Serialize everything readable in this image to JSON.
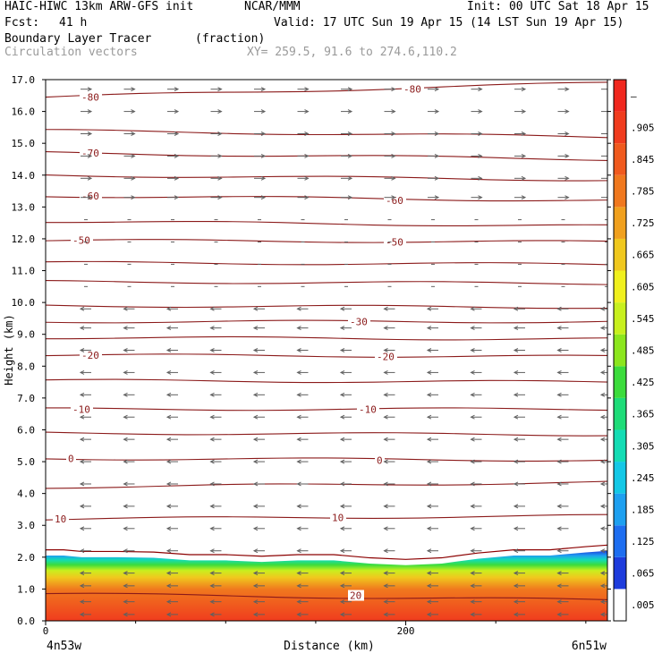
{
  "header": {
    "model": "HAIC-HIWC 13km ARW-GFS init",
    "org": "NCAR/MMM",
    "init": "Init: 00 UTC Sat 18 Apr 15",
    "fcst_label": "Fcst:",
    "fcst_value": "41 h",
    "valid": "Valid: 17 UTC Sun 19 Apr 15 (14 LST Sun 19 Apr 15)",
    "field": "Boundary Layer Tracer",
    "field_units": "(fraction)",
    "vectors": "Circulation vectors",
    "xy": "XY= 259.5, 91.6 to 274.6,110.2"
  },
  "chart_data": {
    "type": "heatmap",
    "title": "Boundary Layer Tracer",
    "xlabel": "Distance (km)",
    "ylabel": "Height (km)",
    "xlim": [
      0,
      312
    ],
    "ylim": [
      0,
      17
    ],
    "x_ticks": [
      {
        "v": 0,
        "label": "0"
      },
      {
        "v": 200,
        "label": "200"
      }
    ],
    "x_end_labels": {
      "left": "4n53w",
      "right": "6n51w"
    },
    "y_ticks": [
      "0.0",
      "1.0",
      "2.0",
      "3.0",
      "4.0",
      "5.0",
      "6.0",
      "7.0",
      "8.0",
      "9.0",
      "10.0",
      "11.0",
      "12.0",
      "13.0",
      "14.0",
      "15.0",
      "16.0",
      "17.0"
    ],
    "colorbar": {
      "labels": [
        ".005",
        ".065",
        ".125",
        ".185",
        ".245",
        ".305",
        ".365",
        ".425",
        ".485",
        ".545",
        ".605",
        ".665",
        ".725",
        ".785",
        ".845",
        ".905",
        "–"
      ],
      "colors": [
        "#ffffff",
        "#1e3cdc",
        "#1e6ef0",
        "#1ea0f0",
        "#14c8e6",
        "#14dcb4",
        "#1edc78",
        "#3cdc3c",
        "#8ce61e",
        "#c8f01e",
        "#f0f01e",
        "#f0c81e",
        "#f0a01e",
        "#f0781e",
        "#f05a1e",
        "#f03c1e",
        "#f0281e"
      ]
    },
    "tracer_profile": {
      "x": [
        0,
        10,
        20,
        40,
        60,
        80,
        100,
        120,
        140,
        160,
        180,
        200,
        220,
        240,
        260,
        280,
        300,
        312
      ],
      "top": [
        2.05,
        2.05,
        2.0,
        2.0,
        1.98,
        1.9,
        1.9,
        1.85,
        1.9,
        1.9,
        1.8,
        1.75,
        1.8,
        1.95,
        2.05,
        2.05,
        2.15,
        2.2
      ]
    },
    "isotherms": [
      {
        "label": "-80",
        "y0": 16.45,
        "y1": 16.9,
        "lx": [
          40,
          400
        ],
        "ly": [
          16.45,
          16.7
        ]
      },
      {
        "label": "",
        "y0": 15.4,
        "y1": 15.2
      },
      {
        "label": "-70",
        "y0": 14.7,
        "y1": 14.5,
        "lx": [
          40
        ],
        "ly": [
          14.7
        ]
      },
      {
        "label": "",
        "y0": 14.0,
        "y1": 13.85
      },
      {
        "label": "-60",
        "y0": 13.35,
        "y1": 13.2,
        "lx": [
          40,
          380
        ],
        "ly": [
          13.35,
          13.2
        ]
      },
      {
        "label": "",
        "y0": 12.55,
        "y1": 12.4
      },
      {
        "label": "-50",
        "y0": 11.95,
        "y1": 11.9,
        "lx": [
          30,
          380
        ],
        "ly": [
          11.95,
          11.9
        ]
      },
      {
        "label": "",
        "y0": 11.25,
        "y1": 11.2
      },
      {
        "label": "",
        "y0": 10.65,
        "y1": 10.6
      },
      {
        "label": "",
        "y0": 9.9,
        "y1": 9.85
      },
      {
        "label": "-30",
        "y0": 9.4,
        "y1": 9.4,
        "lx": [
          340
        ],
        "ly": [
          9.4
        ]
      },
      {
        "label": "",
        "y0": 8.9,
        "y1": 8.85
      },
      {
        "label": "-20",
        "y0": 8.35,
        "y1": 8.3,
        "lx": [
          40,
          370
        ],
        "ly": [
          8.35,
          8.3
        ]
      },
      {
        "label": "",
        "y0": 7.55,
        "y1": 7.5
      },
      {
        "label": "-10",
        "y0": 6.65,
        "y1": 6.65,
        "lx": [
          30,
          350
        ],
        "ly": [
          6.65,
          6.65
        ]
      },
      {
        "label": "",
        "y0": 5.9,
        "y1": 5.85
      },
      {
        "label": "0",
        "y0": 5.1,
        "y1": 5.05,
        "lx": [
          25,
          370
        ],
        "ly": [
          5.1,
          5.05
        ]
      },
      {
        "label": "",
        "y0": 4.2,
        "y1": 4.35
      },
      {
        "label": "10",
        "y0": 3.2,
        "y1": 3.3,
        "lx": [
          10,
          320
        ],
        "ly": [
          3.2,
          3.25
        ]
      },
      {
        "label": "20",
        "y0": 0.85,
        "y1": 0.65,
        "lx": [
          340
        ],
        "ly": [
          0.8
        ]
      }
    ],
    "wind_rows": [
      {
        "h": 16.7,
        "dir": 1
      },
      {
        "h": 16.0,
        "dir": 1
      },
      {
        "h": 15.3,
        "dir": 1
      },
      {
        "h": 14.6,
        "dir": 1
      },
      {
        "h": 13.9,
        "dir": 1
      },
      {
        "h": 13.3,
        "dir": 1
      },
      {
        "h": 12.6,
        "dir": 0
      },
      {
        "h": 11.9,
        "dir": 0
      },
      {
        "h": 11.2,
        "dir": 0
      },
      {
        "h": 10.5,
        "dir": 0
      },
      {
        "h": 9.8,
        "dir": -1
      },
      {
        "h": 9.2,
        "dir": -1
      },
      {
        "h": 8.5,
        "dir": -1
      },
      {
        "h": 7.8,
        "dir": -1
      },
      {
        "h": 7.1,
        "dir": -1
      },
      {
        "h": 6.4,
        "dir": -1
      },
      {
        "h": 5.7,
        "dir": -1
      },
      {
        "h": 5.0,
        "dir": -1
      },
      {
        "h": 4.3,
        "dir": -1
      },
      {
        "h": 3.6,
        "dir": -1
      },
      {
        "h": 2.9,
        "dir": -1
      },
      {
        "h": 2.2,
        "dir": -1
      },
      {
        "h": 1.5,
        "dir": -1
      },
      {
        "h": 1.1,
        "dir": -1
      },
      {
        "h": 0.6,
        "dir": -1
      },
      {
        "h": 0.2,
        "dir": -1
      }
    ]
  }
}
